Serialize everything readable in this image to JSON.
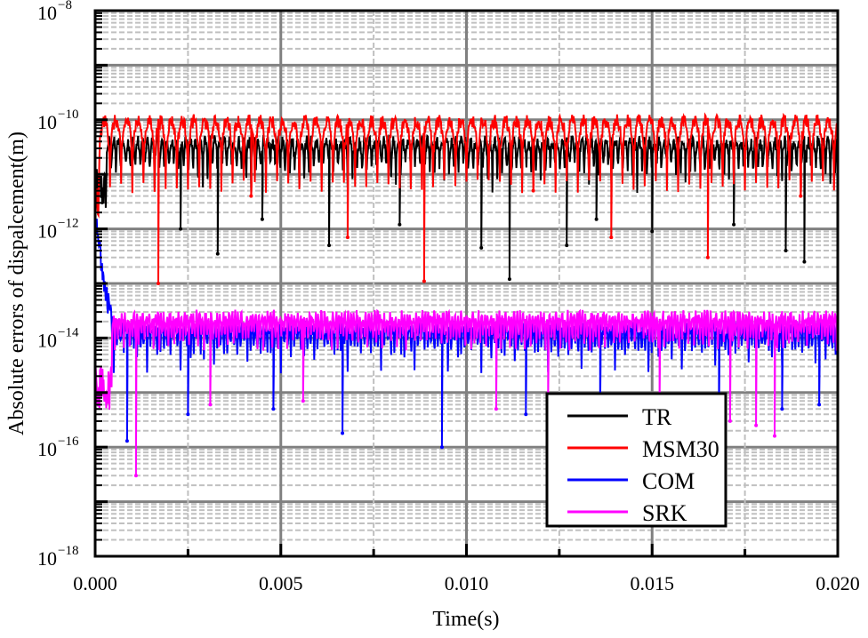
{
  "chart_data": {
    "type": "line",
    "title": "",
    "xlabel": "Time(s)",
    "ylabel": "Absolute errors of dispalcement(m)",
    "xlim": [
      0,
      0.02
    ],
    "ylim": [
      1e-18,
      1e-08
    ],
    "yscale": "log",
    "grid": true,
    "legend_position": "bottom-right",
    "x_ticks": [
      "0.000",
      "0.005",
      "0.010",
      "0.015",
      "0.020"
    ],
    "x_tick_values": [
      0,
      0.005,
      0.01,
      0.015,
      0.02
    ],
    "y_ticks": [
      {
        "base": "10",
        "exp": "−8",
        "value": 1e-08
      },
      {
        "base": "10",
        "exp": "−10",
        "value": 1e-10
      },
      {
        "base": "10",
        "exp": "−12",
        "value": 1e-12
      },
      {
        "base": "10",
        "exp": "−14",
        "value": 1e-14
      },
      {
        "base": "10",
        "exp": "−16",
        "value": 1e-16
      },
      {
        "base": "10",
        "exp": "−18",
        "value": 1e-18
      }
    ],
    "series": [
      {
        "name": "TR",
        "color": "#000000",
        "start": 0.0003,
        "initial_level": 5e-12,
        "peak": 4e-11,
        "floor": 6e-12,
        "period": 0.00013,
        "dips": [
          [
            0.0023,
            1e-12
          ],
          [
            0.0033,
            3.5e-13
          ],
          [
            0.0063,
            5e-13
          ],
          [
            0.0104,
            4.5e-13
          ],
          [
            0.01116,
            1.2e-13
          ],
          [
            0.0127,
            5e-13
          ],
          [
            0.015,
            9e-13
          ],
          [
            0.0186,
            4e-13
          ],
          [
            0.0191,
            2.5e-13
          ],
          [
            0.0045,
            1.5e-12
          ],
          [
            0.0082,
            1.2e-12
          ],
          [
            0.0135,
            1.5e-12
          ],
          [
            0.0172,
            1.2e-12
          ]
        ]
      },
      {
        "name": "MSM30",
        "color": "#ff0000",
        "start": 0.0001,
        "initial_level": 3e-12,
        "peak": 9.5e-11,
        "floor": 6e-12,
        "period": 0.0003,
        "dips": [
          [
            0.0017,
            1e-13
          ],
          [
            0.0068,
            7e-13
          ],
          [
            0.00886,
            1.1e-13
          ],
          [
            0.0139,
            7e-13
          ],
          [
            0.0165,
            3e-13
          ],
          [
            0.0042,
            4e-12
          ],
          [
            0.0118,
            5e-12
          ],
          [
            0.019,
            4e-12
          ]
        ]
      },
      {
        "name": "COM",
        "color": "#0000ff",
        "start": 0.0005,
        "initial_level": 1e-12,
        "peak": 1.6e-14,
        "floor": 3e-15,
        "period": 9e-05,
        "dips": [
          [
            0.00086,
            1.3e-16
          ],
          [
            0.00666,
            1.8e-16
          ],
          [
            0.00934,
            1e-16
          ],
          [
            0.0025,
            4e-16
          ],
          [
            0.0048,
            5e-16
          ],
          [
            0.0116,
            4e-16
          ],
          [
            0.0136,
            5e-16
          ],
          [
            0.0168,
            3e-16
          ],
          [
            0.0185,
            5e-16
          ],
          [
            0.0195,
            6e-16
          ]
        ]
      },
      {
        "name": "SRK",
        "color": "#ff00ff",
        "start": 0.00045,
        "initial_level": 1.2e-15,
        "peak": 2.5e-14,
        "floor": 4e-15,
        "period": 8e-05,
        "dips": [
          [
            0.0011,
            3e-17
          ],
          [
            0.0183,
            1.6e-16
          ],
          [
            0.0171,
            3e-16
          ],
          [
            0.0178,
            2.5e-16
          ],
          [
            0.0031,
            6e-16
          ],
          [
            0.0056,
            7e-16
          ],
          [
            0.0108,
            5e-16
          ],
          [
            0.0122,
            7e-16
          ],
          [
            0.0152,
            6e-16
          ]
        ]
      }
    ]
  }
}
